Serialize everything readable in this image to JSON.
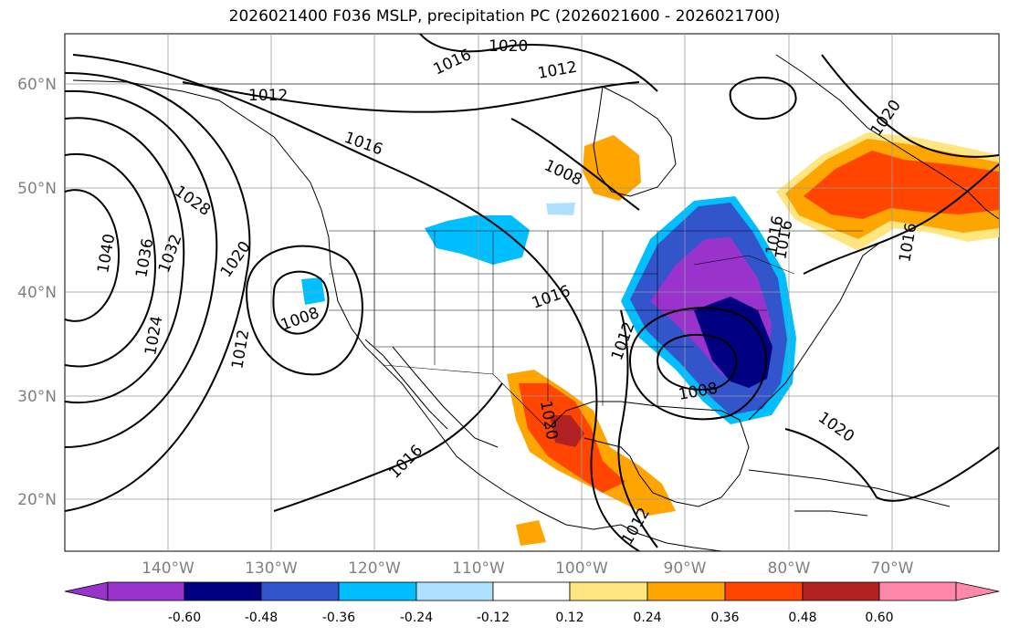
{
  "title": "2026021400 F036 MSLP, precipitation PC (2026021600 - 2026021700)",
  "map": {
    "lat_labels": [
      "60°N",
      "50°N",
      "40°N",
      "30°N",
      "20°N"
    ],
    "lon_labels": [
      "140°W",
      "130°W",
      "120°W",
      "110°W",
      "100°W",
      "90°W",
      "80°W",
      "70°W"
    ],
    "axis_label_color": "#808080",
    "land_color": "#ffffff",
    "isobar_labels": [
      "1020",
      "1016",
      "1012",
      "1012",
      "1016",
      "1008",
      "1028",
      "1040",
      "1036",
      "1032",
      "1020",
      "1024",
      "1012",
      "1008",
      "1016",
      "1012",
      "1008",
      "1020",
      "1016",
      "1020",
      "1016",
      "1016",
      "1020",
      "1016",
      "1012"
    ]
  },
  "colorbar": {
    "ticks": [
      "-0.60",
      "-0.48",
      "-0.36",
      "-0.24",
      "-0.12",
      "0.12",
      "0.24",
      "0.36",
      "0.48",
      "0.60"
    ],
    "colors": [
      "#9933cc",
      "#000080",
      "#3355cc",
      "#00bfff",
      "#b0e0ff",
      "#ffffff",
      "#ffe680",
      "#ffa500",
      "#ff4500",
      "#b22222",
      "#ff88aa"
    ]
  },
  "legend_colors": {
    "purple": "#9933cc",
    "navy": "#000080",
    "blue": "#3355cc",
    "sky": "#00bfff",
    "lightsky": "#b0e0ff",
    "yellow": "#ffe680",
    "orange": "#ffa500",
    "redorange": "#ff4500",
    "darkred": "#b22222",
    "pink": "#ff88aa"
  }
}
